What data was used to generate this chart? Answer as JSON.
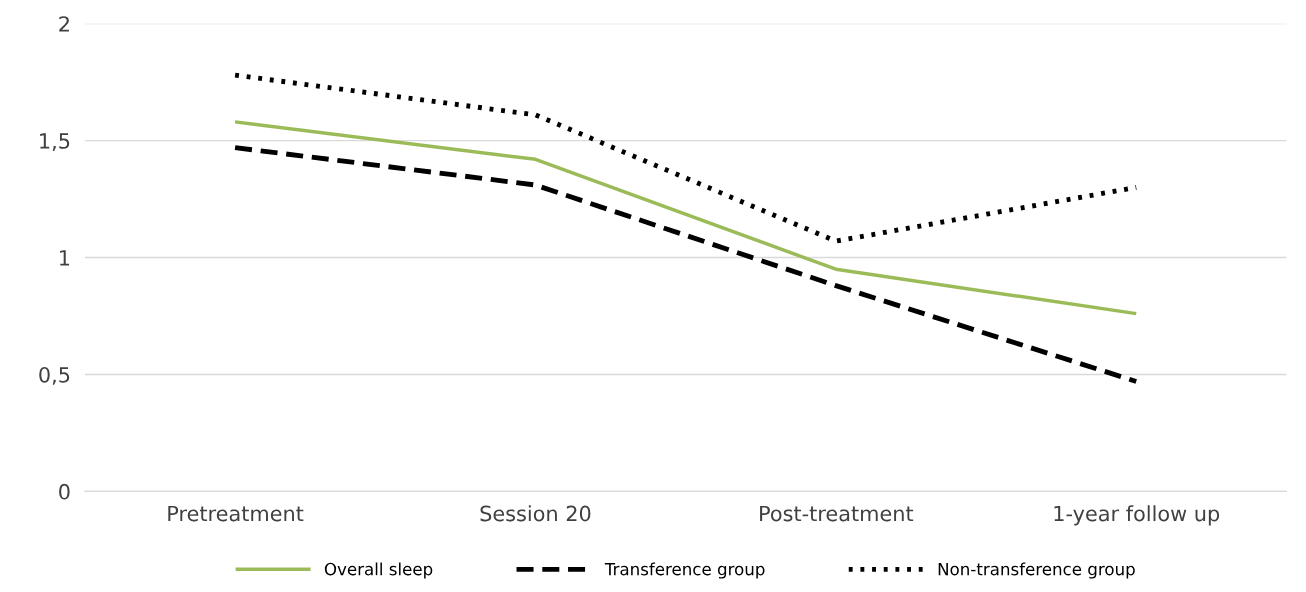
{
  "chart_data": {
    "type": "line",
    "categories": [
      "Pretreatment",
      "Session 20",
      "Post-treatment",
      "1-year follow up"
    ],
    "series": [
      {
        "name": "Overall sleep",
        "color": "#9bbb59",
        "values": [
          1.58,
          1.42,
          0.95,
          0.76
        ],
        "line_style": "solid"
      },
      {
        "name": "Transference group",
        "color": "#000000",
        "values": [
          1.47,
          1.31,
          0.88,
          0.47
        ],
        "line_style": "dashed"
      },
      {
        "name": "Non-transference group",
        "color": "#000000",
        "values": [
          1.78,
          1.61,
          1.07,
          1.3
        ],
        "line_style": "dotted"
      }
    ],
    "ylim": [
      0,
      2
    ],
    "yticks": [
      0,
      {
        "value": 0.5,
        "label": "0,5"
      },
      1,
      {
        "value": 1.5,
        "label": "1,5"
      },
      2
    ],
    "grid": "y",
    "legend": "bottom",
    "marker": "none"
  }
}
